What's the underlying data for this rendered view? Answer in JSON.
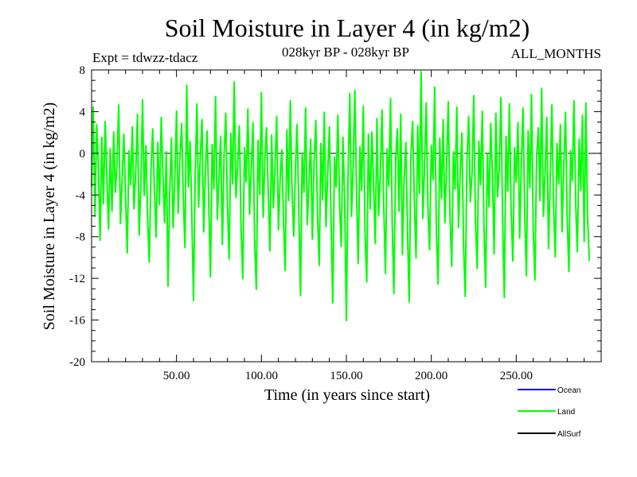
{
  "chart_data": {
    "type": "line",
    "title": "Soil Moisture in Layer 4 (in kg/m2)",
    "subtitle": "028kyr BP - 028kyr BP",
    "experiment": "Expt = tdwzz-tdacz",
    "period": "ALL_MONTHS",
    "xlabel": "Time (in years since start)",
    "ylabel": "Soil Moisture in Layer 4 (in kg/m2)",
    "xlim": [
      0,
      300
    ],
    "ylim": [
      -20,
      8
    ],
    "x_ticks": [
      50,
      100,
      150,
      200,
      250
    ],
    "x_tick_labels": [
      "50.00",
      "100.00",
      "150.00",
      "200.00",
      "250.00"
    ],
    "y_ticks": [
      8,
      4,
      0,
      -4,
      -8,
      -12,
      -16,
      -20
    ],
    "y_tick_labels": [
      "8",
      "4",
      "0",
      "-4",
      "-8",
      "-12",
      "-16",
      "-20"
    ],
    "reference_line": 0,
    "legend": [
      {
        "name": "Ocean",
        "color": "#0000ff"
      },
      {
        "name": "Land",
        "color": "#00ff00"
      },
      {
        "name": "AllSurf",
        "color": "#000000"
      }
    ],
    "series": [
      {
        "name": "Land",
        "color": "#00ff00",
        "x_start": 0,
        "x_step": 1,
        "values": [
          -3.2,
          4.5,
          -6.1,
          2.8,
          -1.0,
          -8.4,
          1.6,
          -4.9,
          3.1,
          -2.2,
          -7.3,
          0.5,
          -5.6,
          2.1,
          -3.8,
          -0.9,
          4.7,
          -6.8,
          -2.5,
          1.9,
          -4.2,
          -9.6,
          0.3,
          -3.1,
          2.6,
          -5.4,
          -1.7,
          3.8,
          -7.9,
          -2.9,
          5.2,
          -4.1,
          0.8,
          -6.3,
          -10.5,
          -1.4,
          2.4,
          -3.6,
          -8.1,
          1.1,
          -5.0,
          3.5,
          -2.0,
          -6.7,
          0.2,
          -12.8,
          -3.9,
          1.5,
          -7.2,
          -2.6,
          4.1,
          -5.8,
          -0.6,
          2.9,
          -4.4,
          -9.1,
          6.6,
          -3.3,
          1.2,
          -6.0,
          -14.2,
          -2.1,
          4.8,
          -5.2,
          -0.4,
          3.3,
          -7.6,
          -1.8,
          2.2,
          -4.7,
          -11.9,
          0.9,
          -3.5,
          5.5,
          -6.4,
          -2.3,
          1.7,
          -8.8,
          -0.2,
          3.9,
          -5.1,
          -10.2,
          2.0,
          -3.0,
          6.9,
          -4.3,
          -1.1,
          2.7,
          -7.0,
          -12.1,
          0.6,
          -2.8,
          4.3,
          -5.9,
          -1.6,
          3.0,
          -8.6,
          -13.1,
          1.3,
          -4.0,
          5.9,
          -6.2,
          -0.7,
          2.5,
          -3.7,
          -9.4,
          1.8,
          -5.3,
          -1.2,
          3.6,
          -7.4,
          -2.4,
          0.4,
          -6.6,
          -11.3,
          2.3,
          -4.6,
          5.1,
          -3.4,
          -8.0,
          -1.5,
          2.8,
          -5.5,
          -13.7,
          0.1,
          -3.8,
          4.4,
          -6.9,
          -2.7,
          1.4,
          -8.3,
          -0.8,
          3.2,
          -5.7,
          -10.8,
          1.0,
          -4.5,
          4.0,
          -7.1,
          -2.0,
          2.6,
          -6.5,
          -14.4,
          -0.3,
          -3.3,
          3.7,
          -5.0,
          -9.0,
          1.6,
          -4.8,
          -16.1,
          -2.2,
          5.8,
          -6.1,
          -1.3,
          6.1,
          -4.1,
          -10.6,
          0.7,
          -3.6,
          4.6,
          -7.7,
          -12.4,
          1.9,
          -5.4,
          2.1,
          -2.9,
          -8.7,
          3.4,
          -6.0,
          -1.9,
          4.2,
          -4.9,
          -11.6,
          0.5,
          -3.2,
          5.3,
          -6.8,
          -13.5,
          -0.5,
          2.4,
          -5.6,
          3.8,
          -9.8,
          -2.5,
          1.1,
          -7.5,
          -14.3,
          -0.1,
          3.1,
          -4.3,
          -10.1,
          2.7,
          -3.9,
          7.9,
          -6.3,
          -1.4,
          4.9,
          -5.1,
          -9.3,
          0.8,
          -2.6,
          6.4,
          -7.8,
          -12.6,
          1.5,
          -4.4,
          3.3,
          -6.7,
          -1.0,
          5.0,
          -5.8,
          -10.9,
          0.2,
          -3.5,
          4.5,
          -7.2,
          -2.1,
          2.0,
          -8.9,
          -13.8,
          -0.6,
          3.6,
          -4.7,
          -1.8,
          5.6,
          -6.4,
          -11.1,
          1.2,
          -3.1,
          4.1,
          -7.0,
          -12.9,
          0.0,
          -5.2,
          2.9,
          -2.3,
          -9.7,
          3.9,
          -4.2,
          -1.5,
          5.4,
          -6.6,
          -13.9,
          1.7,
          -3.7,
          4.8,
          -5.5,
          -10.4,
          0.6,
          -2.8,
          3.0,
          -8.2,
          -1.1,
          4.4,
          -5.9,
          -11.8,
          2.2,
          -3.4,
          5.7,
          -7.3,
          -12.2,
          -0.4,
          2.5,
          -4.6,
          6.3,
          -6.1,
          -1.7,
          3.5,
          -9.2,
          -2.4,
          4.7,
          -5.3,
          -10.0,
          1.0,
          -3.0,
          2.8,
          -7.6,
          -1.2,
          4.0,
          -6.2,
          -11.4,
          0.3,
          -2.7,
          5.1,
          -4.8,
          -9.5,
          1.4,
          -3.6,
          3.7,
          -8.5,
          4.9,
          -6.0,
          -10.3
        ]
      }
    ]
  }
}
